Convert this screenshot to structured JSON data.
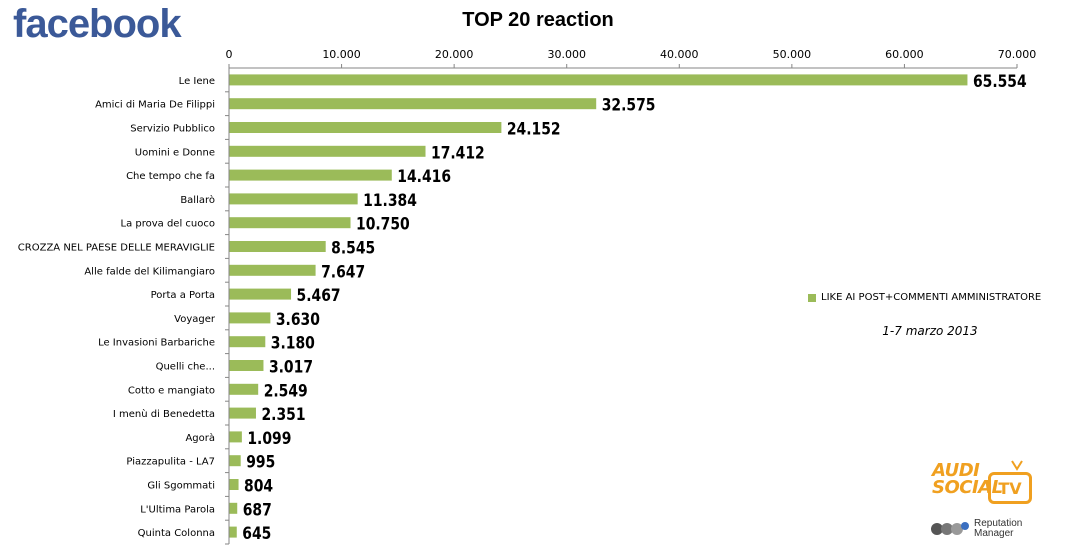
{
  "brand": {
    "logo_text": "facebook",
    "logo_color": "#3b5998"
  },
  "chart_data": {
    "type": "bar",
    "orientation": "horizontal",
    "title": "TOP 20 reaction",
    "categories": [
      "Le Iene",
      "Amici di Maria De Filippi",
      "Servizio Pubblico",
      "Uomini e Donne",
      "Che tempo che fa",
      "Ballarò",
      "La prova del cuoco",
      "CROZZA NEL PAESE DELLE MERAVIGLIE",
      "Alle falde del Kilimangiaro",
      "Porta a Porta",
      "Voyager",
      "Le Invasioni Barbariche",
      "Quelli che...",
      "Cotto e mangiato",
      "I menù di Benedetta",
      "Agorà",
      "Piazzapulita - LA7",
      "Gli Sgommati",
      "L'Ultima Parola",
      "Quinta Colonna"
    ],
    "series": [
      {
        "name": "LIKE AI POST+COMMENTI AMMINISTRATORE",
        "color": "#9bbb59",
        "values": [
          65554,
          32575,
          24152,
          17412,
          14416,
          11384,
          10750,
          8545,
          7647,
          5467,
          3630,
          3180,
          3017,
          2549,
          2351,
          1099,
          995,
          804,
          687,
          645
        ],
        "data_labels": [
          "65.554",
          "32.575",
          "24.152",
          "17.412",
          "14.416",
          "11.384",
          "10.750",
          "8.545",
          "7.647",
          "5.467",
          "3.630",
          "3.180",
          "3.017",
          "2.549",
          "2.351",
          "1.099",
          "995",
          "804",
          "687",
          "645"
        ]
      }
    ],
    "xlim": [
      0,
      70000
    ],
    "xticks": [
      0,
      10000,
      20000,
      30000,
      40000,
      50000,
      60000,
      70000
    ],
    "xtick_labels": [
      "0",
      "10.000",
      "20.000",
      "30.000",
      "40.000",
      "50.000",
      "60.000",
      "70.000"
    ],
    "x_axis_position": "top",
    "grid": false,
    "legend_position": "right",
    "annotation": "1-7 marzo 2013"
  },
  "footer_logos": {
    "audisocial_lines": [
      "AUDI",
      "SOCIAL"
    ],
    "audisocial_tv": "TV",
    "audisocial_color": "#f0a020",
    "reputation_lines": [
      "Reputation",
      "Manager"
    ]
  }
}
